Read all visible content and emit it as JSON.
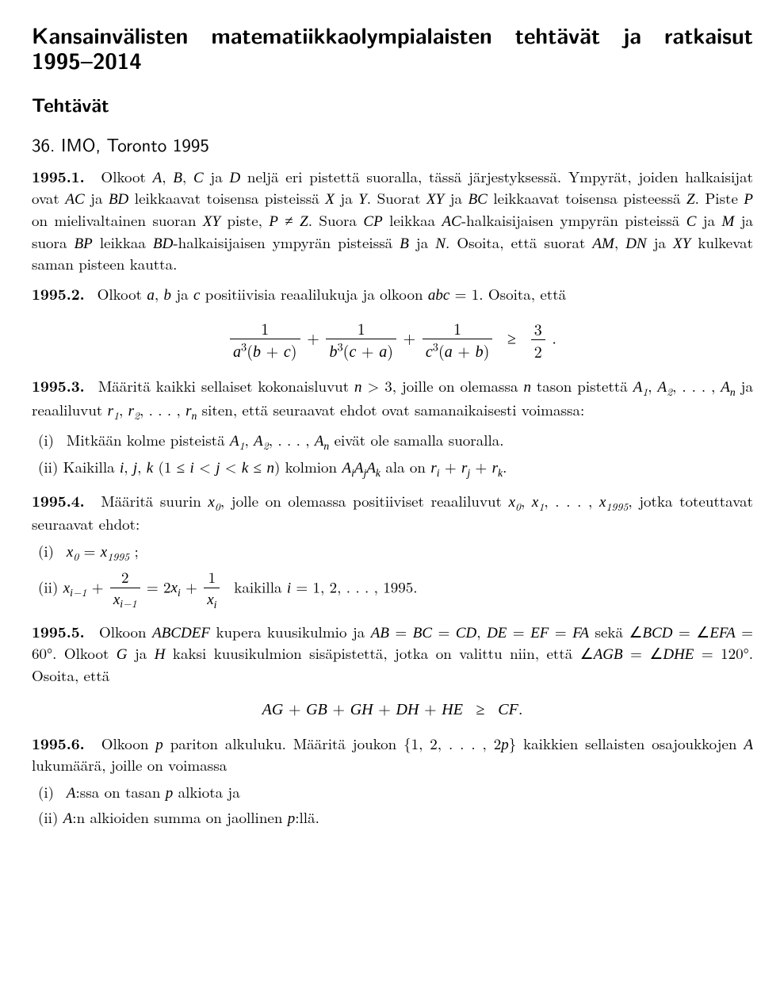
{
  "title": "Kansainvälisten matematiikkaolympialaisten tehtävät ja ratkaisut 1995–2014",
  "sectionHeading": "Tehtävät",
  "eventHeading": "36. IMO, Toronto 1995",
  "p1": {
    "num": "1995.1.",
    "body": "Olkoot <span class=\"math\">A</span>, <span class=\"math\">B</span>, <span class=\"math\">C</span> ja <span class=\"math\">D</span> neljä eri pistettä suoralla, tässä järjestyksessä. Ympyrät, joiden halkaisijat ovat <span class=\"math\">AC</span> ja <span class=\"math\">BD</span> leikkaavat toisensa pisteissä <span class=\"math\">X</span> ja <span class=\"math\">Y</span>. Suorat <span class=\"math\">XY</span> ja <span class=\"math\">BC</span> leikkaavat toisensa pisteessä <span class=\"math\">Z</span>. Piste <span class=\"math\">P</span> on mielivaltainen suoran <span class=\"math\">XY</span> piste, <span class=\"math\">P</span> &#8800; <span class=\"math\">Z</span>. Suora <span class=\"math\">CP</span> leikkaa <span class=\"math\">AC</span>-halkaisijaisen ympyrän pisteissä <span class=\"math\">C</span> ja <span class=\"math\">M</span> ja suora <span class=\"math\">BP</span> leikkaa <span class=\"math\">BD</span>-halkaisijaisen ympyrän pisteissä <span class=\"math\">B</span> ja <span class=\"math\">N</span>. Osoita, että suorat <span class=\"math\">AM</span>, <span class=\"math\">DN</span> ja <span class=\"math\">XY</span> kulkevat saman pisteen kautta."
  },
  "p2": {
    "num": "1995.2.",
    "intro": "Olkoot <span class=\"math\">a</span>, <span class=\"math\">b</span> ja <span class=\"math\">c</span> positiivisia reaalilukuja ja olkoon <span class=\"math\">abc</span> = 1. Osoita, että",
    "eqHtml": "<span class=\"frac\"><span class=\"fn\">1</span><span class=\"fd\"><span class=\"math\">a</span><sup>3</sup>(<span class=\"math\">b</span> + <span class=\"math\">c</span>)</span></span> + <span class=\"frac\"><span class=\"fn\">1</span><span class=\"fd\"><span class=\"math\">b</span><sup>3</sup>(<span class=\"math\">c</span> + <span class=\"math\">a</span>)</span></span> + <span class=\"frac\"><span class=\"fn\">1</span><span class=\"fd\"><span class=\"math\">c</span><sup>3</sup>(<span class=\"math\">a</span> + <span class=\"math\">b</span>)</span></span> &nbsp;&#8805;&nbsp; <span class=\"frac\"><span class=\"fn\">3</span><span class=\"fd\">2</span></span> ."
  },
  "p3": {
    "num": "1995.3.",
    "intro": "Määritä kaikki sellaiset kokonaisluvut <span class=\"math\">n</span> &gt; 3, joille on olemassa <span class=\"math\">n</span> tason pistettä <span class=\"math\">A</span><sub>1</sub>, <span class=\"math\">A</span><sub>2</sub>, . . . , <span class=\"math\">A<sub>n</sub></span> ja reaaliluvut <span class=\"math\">r</span><sub>1</sub>, <span class=\"math\">r</span><sub>2</sub>, . . . , <span class=\"math\">r<sub>n</sub></span> siten, että seuraavat ehdot ovat samanaikaisesti voimassa:",
    "i": "(i)&nbsp; Mitkään kolme pisteistä <span class=\"math\">A</span><sub>1</sub>, <span class=\"math\">A</span><sub>2</sub>, . . . , <span class=\"math\">A<sub>n</sub></span> eivät ole samalla suoralla.",
    "ii": "(ii) Kaikilla <span class=\"math\">i</span>, <span class=\"math\">j</span>, <span class=\"math\">k</span> (1 &#8804; <span class=\"math\">i</span> &lt; <span class=\"math\">j</span> &lt; <span class=\"math\">k</span> &#8804; <span class=\"math\">n</span>) kolmion <span class=\"math\">A<sub>i</sub>A<sub>j</sub>A<sub>k</sub></span> ala on <span class=\"math\">r<sub>i</sub></span> + <span class=\"math\">r<sub>j</sub></span> + <span class=\"math\">r<sub>k</sub></span>."
  },
  "p4": {
    "num": "1995.4.",
    "intro": "Määritä suurin <span class=\"math\">x</span><sub>0</sub>, jolle on olemassa positiiviset reaaliluvut <span class=\"math\">x</span><sub>0</sub>, <span class=\"math\">x</span><sub>1</sub>, . . . , <span class=\"math\">x</span><sub>1995</sub>, jotka toteuttavat seuraavat ehdot:",
    "i": "(i)&nbsp; <span class=\"math\">x</span><sub>0</sub> = <span class=\"math\">x</span><sub>1995</sub> ;",
    "iiHtml": "(ii) <span class=\"math\">x</span><sub><span class=\"math\">i</span>&#8722;1</sub> + <span class=\"frac\"><span class=\"fn\">2</span><span class=\"fd\"><span class=\"math\">x</span><sub><span class=\"math\">i</span>&#8722;1</sub></span></span> = 2<span class=\"math\">x<sub>i</sub></span> + <span class=\"frac\"><span class=\"fn\">1</span><span class=\"fd\"><span class=\"math\">x<sub>i</sub></span></span></span> &nbsp;kaikilla <span class=\"math\">i</span> = 1, 2, . . . , 1995."
  },
  "p5": {
    "num": "1995.5.",
    "intro": "Olkoon <span class=\"math\">ABCDEF</span> kupera kuusikulmio ja <span class=\"math\">AB</span> = <span class=\"math\">BC</span> = <span class=\"math\">CD</span>, <span class=\"math\">DE</span> = <span class=\"math\">EF</span> = <span class=\"math\">FA</span> sekä &#8736;<span class=\"math\">BCD</span> = &#8736;<span class=\"math\">EFA</span> = 60&#176;. Olkoot <span class=\"math\">G</span> ja <span class=\"math\">H</span> kaksi kuusikulmion sisäpistettä, jotka on valittu niin, että &#8736;<span class=\"math\">AGB</span> = &#8736;<span class=\"math\">DHE</span> = 120&#176;. Osoita, että",
    "eqHtml": "<span class=\"math\">AG</span> + <span class=\"math\">GB</span> + <span class=\"math\">GH</span> + <span class=\"math\">DH</span> + <span class=\"math\">HE</span> &nbsp;&#8805;&nbsp; <span class=\"math\">CF</span>."
  },
  "p6": {
    "num": "1995.6.",
    "intro": "Olkoon <span class=\"math\">p</span> pariton alkuluku. Määritä joukon {1, 2, . . . , 2<span class=\"math\">p</span>} kaikkien sellaisten osajoukkojen <span class=\"math\">A</span> lukumäärä, joille on voimassa",
    "i": "(i)&nbsp; <span class=\"math\">A</span>:ssa on tasan <span class=\"math\">p</span> alkiota ja",
    "ii": "(ii) <span class=\"math\">A</span>:n alkioiden summa on jaollinen <span class=\"math\">p</span>:llä."
  }
}
